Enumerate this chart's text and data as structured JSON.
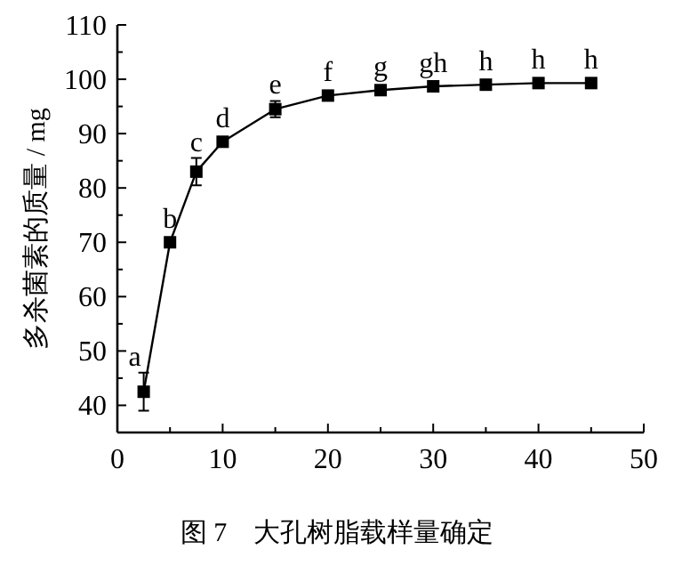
{
  "chart_data": {
    "type": "line",
    "title": "图 7　大孔树脂载样量确定",
    "ylabel": "多杀菌素的质量 / mg",
    "x": [
      2.5,
      5,
      7.5,
      10,
      15,
      20,
      25,
      30,
      35,
      40,
      45
    ],
    "values": [
      42.5,
      70,
      83,
      88.5,
      94.5,
      97,
      98,
      98.7,
      99,
      99.3,
      99.3
    ],
    "errors": [
      3.5,
      null,
      2.5,
      null,
      1.5,
      null,
      null,
      null,
      null,
      null,
      null
    ],
    "color": "#000000",
    "marker": "square",
    "line_style": "solid",
    "xlim": [
      0,
      50
    ],
    "ylim": [
      35,
      110
    ],
    "xticks": [
      0,
      {
        "value": 5,
        "label": null
      },
      10,
      {
        "value": 15,
        "label": null
      },
      20,
      {
        "value": 25,
        "label": null
      },
      30,
      {
        "value": 35,
        "label": null
      },
      40,
      {
        "value": 45,
        "label": null
      },
      50
    ],
    "yticks": [
      40,
      {
        "value": 45,
        "label": null
      },
      50,
      {
        "value": 55,
        "label": null
      },
      60,
      {
        "value": 65,
        "label": null
      },
      70,
      {
        "value": 75,
        "label": null
      },
      80,
      {
        "value": 85,
        "label": null
      },
      90,
      {
        "value": 95,
        "label": null
      },
      100,
      {
        "value": 105,
        "label": null
      },
      110
    ],
    "annotations": [
      {
        "text": "a",
        "x": 2.5,
        "y": 42.5
      },
      {
        "text": "b",
        "x": 5,
        "y": 70
      },
      {
        "text": "c",
        "x": 7.5,
        "y": 83
      },
      {
        "text": "d",
        "x": 10,
        "y": 88.5
      },
      {
        "text": "e",
        "x": 15,
        "y": 94.5
      },
      {
        "text": "f",
        "x": 20,
        "y": 97
      },
      {
        "text": "g",
        "x": 25,
        "y": 98
      },
      {
        "text": "gh",
        "x": 30,
        "y": 98.7
      },
      {
        "text": "h",
        "x": 35,
        "y": 99
      },
      {
        "text": "h",
        "x": 40,
        "y": 99.3
      },
      {
        "text": "h",
        "x": 45,
        "y": 99.3
      }
    ]
  }
}
